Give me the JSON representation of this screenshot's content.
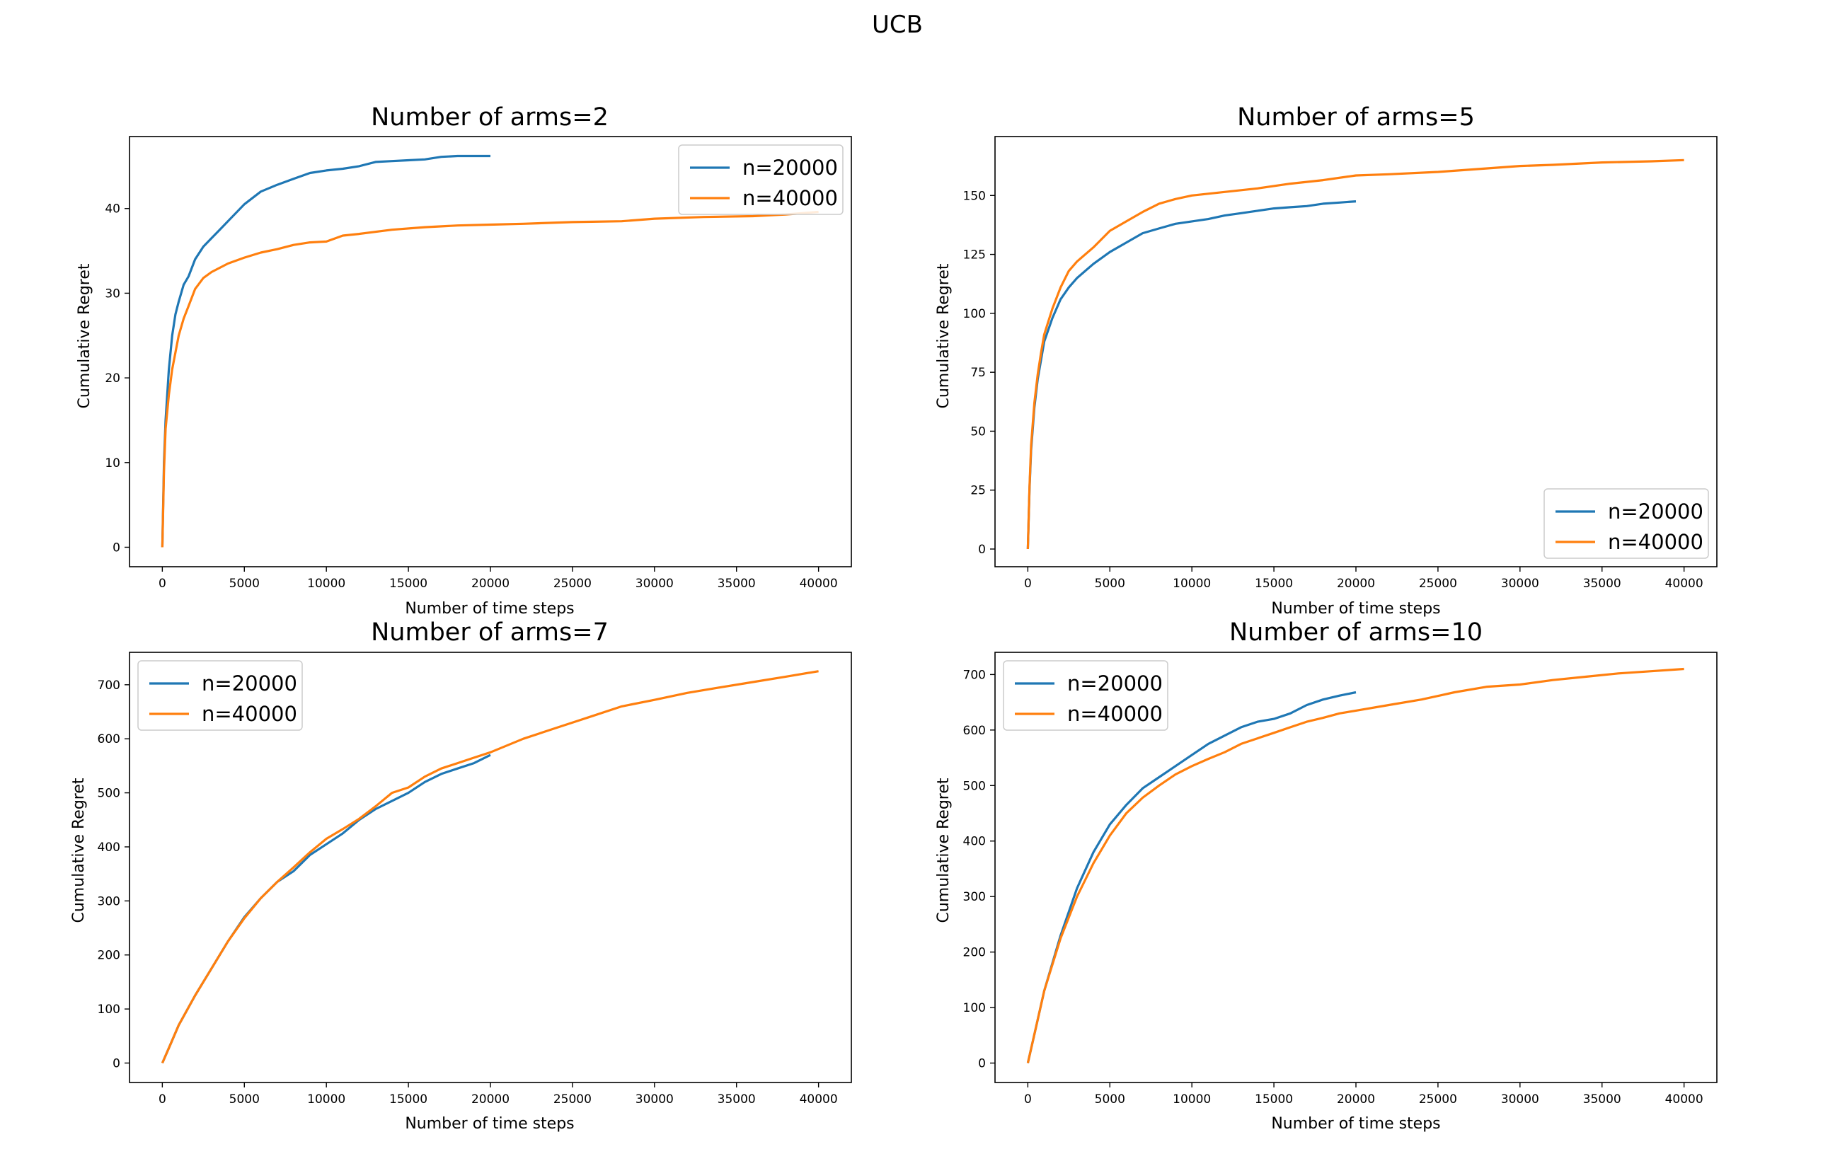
{
  "figure_title": "UCB",
  "colors": {
    "n20000": "#1f77b4",
    "n40000": "#ff7f0e"
  },
  "chart_data": [
    {
      "type": "line",
      "title": "Number of arms=2",
      "xlabel": "Number of time steps",
      "ylabel": "Cumulative Regret",
      "xlim": [
        -2000,
        42000
      ],
      "ylim": [
        -2.3,
        48.5
      ],
      "xticks": [
        0,
        5000,
        10000,
        15000,
        20000,
        25000,
        30000,
        35000,
        40000
      ],
      "yticks": [
        0,
        10,
        20,
        30,
        40
      ],
      "legend_loc": "upper right",
      "series": [
        {
          "name": "n=20000",
          "color": "#1f77b4",
          "x": [
            0,
            100,
            200,
            400,
            600,
            800,
            1000,
            1300,
            1600,
            2000,
            2500,
            3000,
            3500,
            4000,
            4500,
            5000,
            6000,
            7000,
            8000,
            9000,
            10000,
            11000,
            12000,
            13000,
            14000,
            15000,
            16000,
            17000,
            18000,
            19000,
            20000
          ],
          "y": [
            0,
            10,
            15,
            21,
            25,
            27.5,
            29,
            31,
            32,
            34,
            35.5,
            36.5,
            37.5,
            38.5,
            39.5,
            40.5,
            42,
            42.8,
            43.5,
            44.2,
            44.5,
            44.7,
            45,
            45.5,
            45.6,
            45.7,
            45.8,
            46.1,
            46.2,
            46.2,
            46.2
          ]
        },
        {
          "name": "n=40000",
          "color": "#ff7f0e",
          "x": [
            0,
            100,
            200,
            400,
            600,
            800,
            1000,
            1300,
            1600,
            2000,
            2500,
            3000,
            4000,
            5000,
            6000,
            7000,
            8000,
            9000,
            10000,
            11000,
            12000,
            14000,
            16000,
            18000,
            20000,
            22000,
            25000,
            28000,
            30000,
            33000,
            36000,
            38000,
            40000
          ],
          "y": [
            0,
            9,
            14,
            18,
            21,
            23,
            25,
            27,
            28.5,
            30.5,
            31.8,
            32.5,
            33.5,
            34.2,
            34.8,
            35.2,
            35.7,
            36,
            36.1,
            36.8,
            37,
            37.5,
            37.8,
            38,
            38.1,
            38.2,
            38.4,
            38.5,
            38.8,
            39,
            39.1,
            39.3,
            39.6
          ]
        }
      ]
    },
    {
      "type": "line",
      "title": "Number of arms=5",
      "xlabel": "Number of time steps",
      "ylabel": "Cumulative Regret",
      "xlim": [
        -2000,
        42000
      ],
      "ylim": [
        -7.5,
        175
      ],
      "xticks": [
        0,
        5000,
        10000,
        15000,
        20000,
        25000,
        30000,
        35000,
        40000
      ],
      "yticks": [
        0,
        25,
        50,
        75,
        100,
        125,
        150
      ],
      "legend_loc": "lower right",
      "series": [
        {
          "name": "n=20000",
          "color": "#1f77b4",
          "x": [
            0,
            100,
            200,
            400,
            600,
            800,
            1000,
            1500,
            2000,
            2500,
            3000,
            4000,
            5000,
            6000,
            7000,
            8000,
            9000,
            10000,
            11000,
            12000,
            13000,
            14000,
            15000,
            16000,
            17000,
            18000,
            19000,
            20000
          ],
          "y": [
            0,
            25,
            42,
            60,
            72,
            80,
            88,
            98,
            106,
            111,
            115,
            121,
            126,
            130,
            134,
            136,
            138,
            139,
            140,
            141.5,
            142.5,
            143.5,
            144.5,
            145,
            145.5,
            146.5,
            147,
            147.5
          ]
        },
        {
          "name": "n=40000",
          "color": "#ff7f0e",
          "x": [
            0,
            100,
            200,
            400,
            600,
            800,
            1000,
            1500,
            2000,
            2500,
            3000,
            4000,
            5000,
            6000,
            7000,
            8000,
            9000,
            10000,
            12000,
            14000,
            16000,
            18000,
            20000,
            22000,
            25000,
            28000,
            30000,
            32000,
            35000,
            38000,
            40000
          ],
          "y": [
            0,
            26,
            44,
            62,
            74,
            83,
            91,
            102,
            111,
            118,
            122,
            128,
            135,
            139,
            143,
            146.5,
            148.5,
            150,
            151.5,
            153,
            155,
            156.5,
            158.5,
            159,
            160,
            161.5,
            162.5,
            163,
            164,
            164.5,
            165
          ]
        }
      ]
    },
    {
      "type": "line",
      "title": "Number of arms=7",
      "xlabel": "Number of time steps",
      "ylabel": "Cumulative Regret",
      "xlim": [
        -2000,
        42000
      ],
      "ylim": [
        -36,
        760
      ],
      "xticks": [
        0,
        5000,
        10000,
        15000,
        20000,
        25000,
        30000,
        35000,
        40000
      ],
      "yticks": [
        0,
        100,
        200,
        300,
        400,
        500,
        600,
        700
      ],
      "legend_loc": "upper left",
      "series": [
        {
          "name": "n=20000",
          "color": "#1f77b4",
          "x": [
            0,
            500,
            1000,
            2000,
            3000,
            4000,
            5000,
            6000,
            7000,
            8000,
            9000,
            10000,
            11000,
            12000,
            13000,
            14000,
            15000,
            16000,
            17000,
            18000,
            19000,
            20000
          ],
          "y": [
            0,
            35,
            70,
            125,
            175,
            225,
            270,
            305,
            335,
            355,
            385,
            405,
            425,
            450,
            470,
            485,
            500,
            520,
            535,
            545,
            555,
            570
          ]
        },
        {
          "name": "n=40000",
          "color": "#ff7f0e",
          "x": [
            0,
            500,
            1000,
            2000,
            3000,
            4000,
            5000,
            6000,
            7000,
            8000,
            9000,
            10000,
            11000,
            12000,
            13000,
            14000,
            15000,
            16000,
            17000,
            18000,
            19000,
            20000,
            22000,
            24000,
            26000,
            28000,
            30000,
            32000,
            34000,
            36000,
            38000,
            40000
          ],
          "y": [
            0,
            35,
            70,
            125,
            175,
            225,
            268,
            305,
            335,
            362,
            390,
            415,
            433,
            452,
            475,
            500,
            510,
            530,
            545,
            555,
            565,
            575,
            600,
            620,
            640,
            660,
            672,
            685,
            695,
            705,
            715,
            725
          ]
        }
      ]
    },
    {
      "type": "line",
      "title": "Number of arms=10",
      "xlabel": "Number of time steps",
      "ylabel": "Cumulative Regret",
      "xlim": [
        -2000,
        42000
      ],
      "ylim": [
        -35,
        740
      ],
      "xticks": [
        0,
        5000,
        10000,
        15000,
        20000,
        25000,
        30000,
        35000,
        40000
      ],
      "yticks": [
        0,
        100,
        200,
        300,
        400,
        500,
        600,
        700
      ],
      "legend_loc": "upper left",
      "series": [
        {
          "name": "n=20000",
          "color": "#1f77b4",
          "x": [
            0,
            500,
            1000,
            2000,
            3000,
            4000,
            5000,
            6000,
            7000,
            8000,
            9000,
            10000,
            11000,
            12000,
            13000,
            14000,
            15000,
            16000,
            17000,
            18000,
            19000,
            20000
          ],
          "y": [
            0,
            65,
            130,
            230,
            315,
            380,
            430,
            465,
            495,
            515,
            535,
            555,
            575,
            590,
            605,
            615,
            620,
            630,
            645,
            655,
            662,
            668
          ]
        },
        {
          "name": "n=40000",
          "color": "#ff7f0e",
          "x": [
            0,
            500,
            1000,
            2000,
            3000,
            4000,
            5000,
            6000,
            7000,
            8000,
            9000,
            10000,
            11000,
            12000,
            13000,
            14000,
            15000,
            16000,
            17000,
            18000,
            19000,
            20000,
            22000,
            24000,
            26000,
            28000,
            30000,
            32000,
            34000,
            36000,
            38000,
            40000
          ],
          "y": [
            0,
            65,
            130,
            225,
            300,
            360,
            410,
            450,
            478,
            500,
            520,
            535,
            548,
            560,
            575,
            585,
            595,
            605,
            615,
            622,
            630,
            635,
            645,
            655,
            668,
            678,
            682,
            690,
            696,
            702,
            706,
            710
          ]
        }
      ]
    }
  ]
}
